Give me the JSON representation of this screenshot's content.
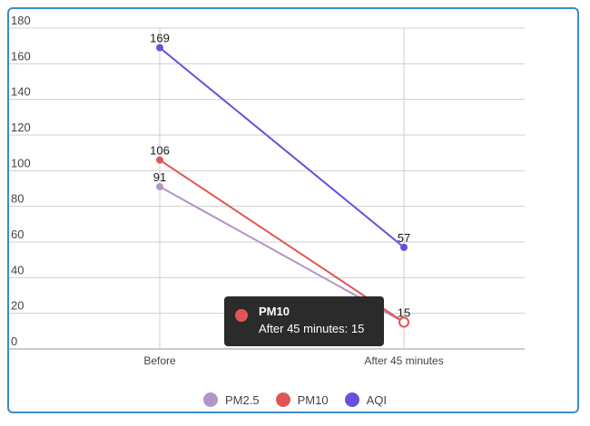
{
  "chart_data": {
    "type": "line",
    "categories": [
      "Before",
      "After 45 minutes"
    ],
    "series": [
      {
        "name": "PM2.5",
        "values": [
          91,
          15
        ],
        "color": "#b394c6"
      },
      {
        "name": "PM10",
        "values": [
          106,
          15
        ],
        "color": "#e05656"
      },
      {
        "name": "AQI",
        "values": [
          169,
          57
        ],
        "color": "#6a4fdc"
      }
    ],
    "yticks": [
      0,
      20,
      40,
      60,
      80,
      100,
      120,
      140,
      160,
      180
    ],
    "ylim": [
      0,
      180
    ],
    "grid": true,
    "legend_position": "bottom",
    "point_labels": [
      {
        "series": "AQI",
        "category": "Before",
        "text": "169"
      },
      {
        "series": "PM10",
        "category": "Before",
        "text": "106"
      },
      {
        "series": "PM2.5",
        "category": "Before",
        "text": "91"
      },
      {
        "series": "AQI",
        "category": "After 45 minutes",
        "text": "57"
      },
      {
        "series": "PM10",
        "category": "After 45 minutes",
        "text": "15"
      }
    ]
  },
  "tooltip": {
    "title": "PM10",
    "body": "After 45 minutes: 15",
    "color": "#e05656"
  }
}
